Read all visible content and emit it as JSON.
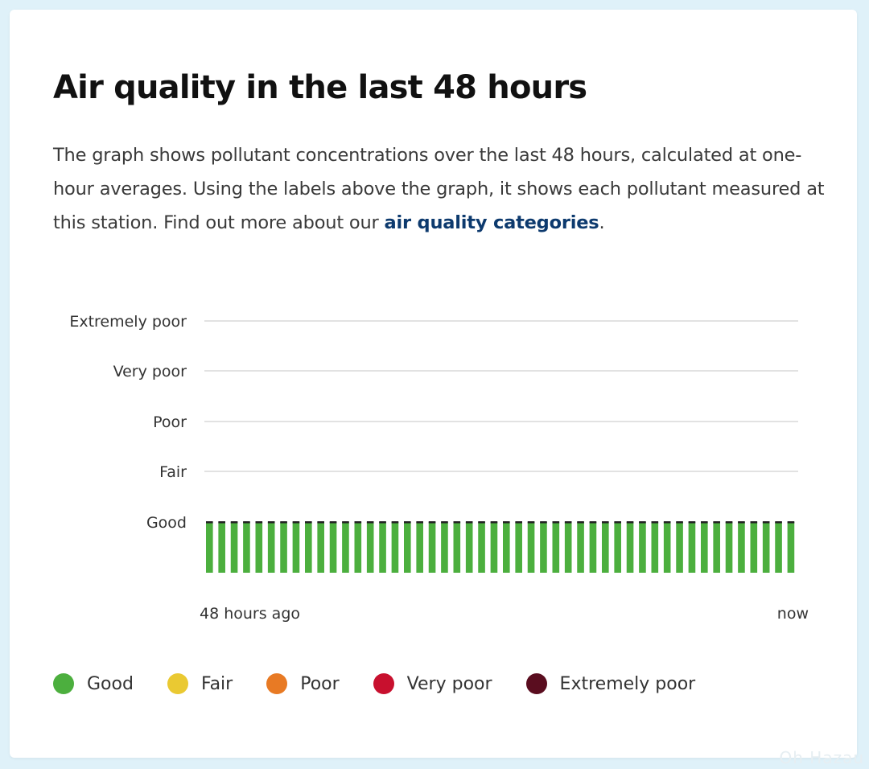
{
  "page": {
    "title": "Air quality in the last 48 hours",
    "description_before_link": "The graph shows pollutant concentrations over the last 48 hours, calculated at one-hour averages. Using the labels above the graph, it shows each pollutant measured at this station. Find out more about our ",
    "link_text": "air quality categories",
    "description_after_link": "."
  },
  "chart_data": {
    "type": "bar",
    "title": "",
    "xlabel": "",
    "ylabel": "",
    "x_start_label": "48 hours ago",
    "x_end_label": "now",
    "y_categories": [
      "Good",
      "Fair",
      "Poor",
      "Very poor",
      "Extremely poor"
    ],
    "bar_count": 48,
    "values": [
      "Good",
      "Good",
      "Good",
      "Good",
      "Good",
      "Good",
      "Good",
      "Good",
      "Good",
      "Good",
      "Good",
      "Good",
      "Good",
      "Good",
      "Good",
      "Good",
      "Good",
      "Good",
      "Good",
      "Good",
      "Good",
      "Good",
      "Good",
      "Good",
      "Good",
      "Good",
      "Good",
      "Good",
      "Good",
      "Good",
      "Good",
      "Good",
      "Good",
      "Good",
      "Good",
      "Good",
      "Good",
      "Good",
      "Good",
      "Good",
      "Good",
      "Good",
      "Good",
      "Good",
      "Good",
      "Good",
      "Good",
      "Good"
    ],
    "grid": true,
    "colors": {
      "Good": "#4caf3e",
      "Fair": "#eac932",
      "Poor": "#e87a24",
      "Very poor": "#c8102e",
      "Extremely poor": "#5a0d1f"
    }
  },
  "legend": [
    {
      "label": "Good",
      "color": "#4caf3e"
    },
    {
      "label": "Fair",
      "color": "#eac932"
    },
    {
      "label": "Poor",
      "color": "#e87a24"
    },
    {
      "label": "Very poor",
      "color": "#c8102e"
    },
    {
      "label": "Extremely poor",
      "color": "#5a0d1f"
    }
  ],
  "watermark": "Oh Hazau"
}
